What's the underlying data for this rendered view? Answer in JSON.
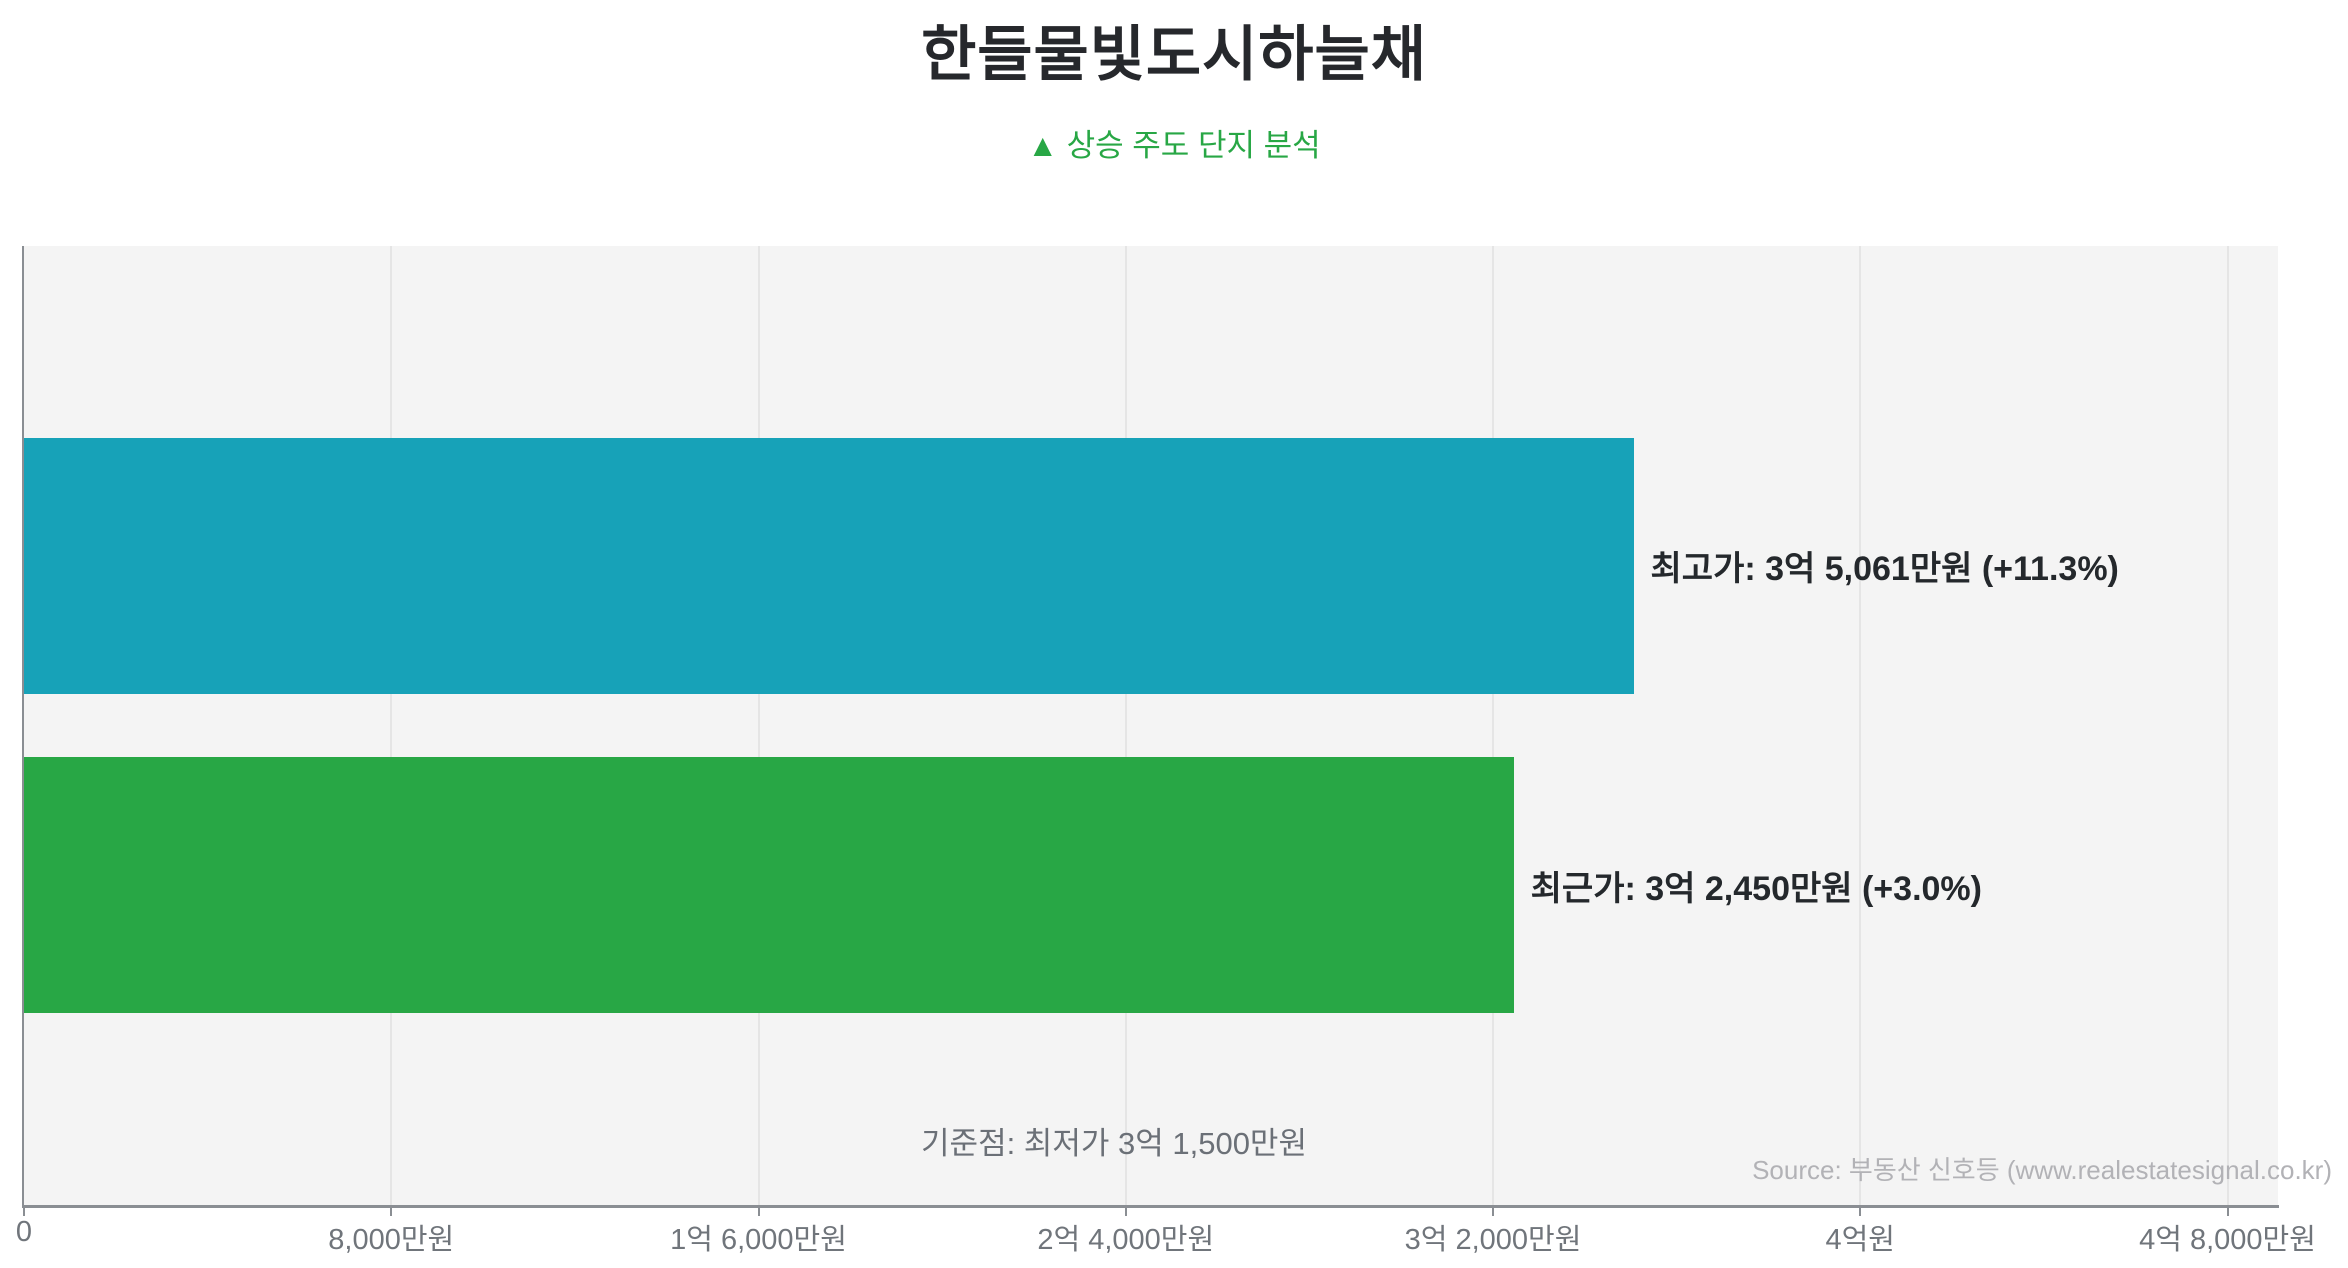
{
  "header": {
    "title": "한들물빛도시하늘채",
    "subtitle": "▲ 상승 주도 단지 분석"
  },
  "chart_data": {
    "type": "bar",
    "orientation": "horizontal",
    "title": "한들물빛도시하늘채",
    "subtitle": "▲ 상승 주도 단지 분석",
    "unit": "만원",
    "bars": [
      {
        "name": "최고가",
        "value": 35061,
        "value_label": "최고가: 3억 5,061만원 (+11.3%)",
        "change_pct": "+11.3%",
        "color": "#17a2b8"
      },
      {
        "name": "최근가",
        "value": 32450,
        "value_label": "최근가: 3억 2,450만원 (+3.0%)",
        "change_pct": "+3.0%",
        "color": "#28a745"
      }
    ],
    "baseline": {
      "value": 31500,
      "label": "기준점: 최저가 3억 1,500만원"
    },
    "x_axis": {
      "min": 0,
      "max": 49100,
      "ticks": [
        {
          "value": 0,
          "label": "0"
        },
        {
          "value": 8000,
          "label": "8,000만원"
        },
        {
          "value": 16000,
          "label": "1억 6,000만원"
        },
        {
          "value": 24000,
          "label": "2억 4,000만원"
        },
        {
          "value": 32000,
          "label": "3억 2,000만원"
        },
        {
          "value": 40000,
          "label": "4억원"
        },
        {
          "value": 48000,
          "label": "4억 8,000만원"
        }
      ]
    },
    "grid": true,
    "legend": "none",
    "source": "Source: 부동산 신호등 (www.realestatesignal.co.kr)",
    "colors": {
      "plot_bg": "#f4f4f4",
      "gridline": "#e5e5e5",
      "axis": "#8a8e93",
      "title_text": "#26282c",
      "subtitle_green": "#28a745",
      "label_text": "#24282c",
      "tick_text": "#70757b",
      "annotation_text": "#6b7077",
      "source_text": "#b2b2b6"
    }
  }
}
